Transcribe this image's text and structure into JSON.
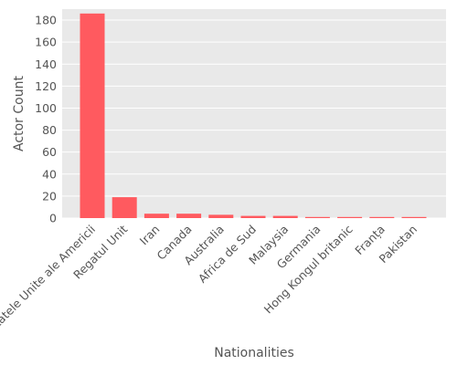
{
  "colors": {
    "bar": "#ff5a5f",
    "panel": "#e9e9e9",
    "grid": "#ffffff",
    "text": "#555555"
  },
  "chart_data": {
    "type": "bar",
    "xlabel": "Nationalities",
    "ylabel": "Actor Count",
    "ylim": [
      0,
      190
    ],
    "yticks": [
      0,
      20,
      40,
      60,
      80,
      100,
      120,
      140,
      160,
      180
    ],
    "grid": true,
    "categories": [
      "Statele Unite ale Americii",
      "Regatul Unit",
      "Iran",
      "Canada",
      "Australia",
      "Africa de Sud",
      "Malaysia",
      "Germania",
      "Hong Kongul britanic",
      "Franța",
      "Pakistan"
    ],
    "values": [
      186,
      19,
      4,
      4,
      3,
      2,
      2,
      1,
      1,
      1,
      1
    ]
  }
}
